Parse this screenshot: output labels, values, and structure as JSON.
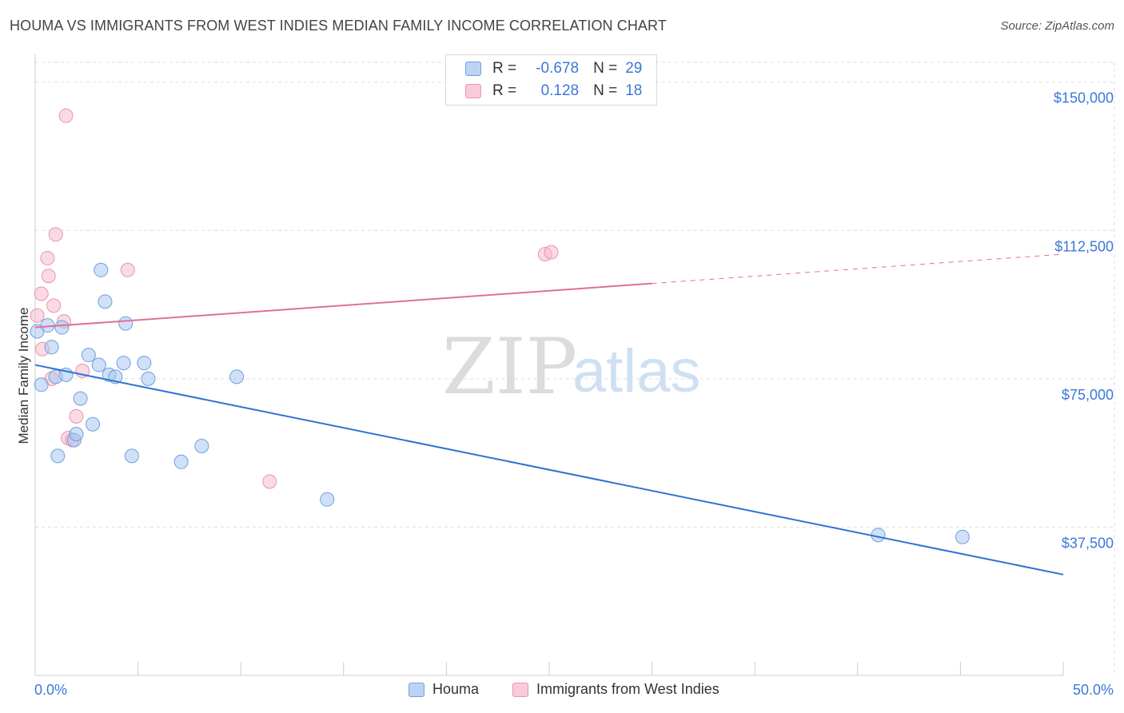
{
  "title": "HOUMA VS IMMIGRANTS FROM WEST INDIES MEDIAN FAMILY INCOME CORRELATION CHART",
  "source": "Source: ZipAtlas.com",
  "watermark": {
    "zip": "ZIP",
    "atlas": "atlas"
  },
  "legend": {
    "rows": [
      {
        "r_label": "R =",
        "r_value": "-0.678",
        "n_label": "N =",
        "n_value": "29"
      },
      {
        "r_label": "R =",
        "r_value": "0.128",
        "n_label": "N =",
        "n_value": "18"
      }
    ]
  },
  "bottom_legend": [
    "Houma",
    "Immigrants from West Indies"
  ],
  "colors": {
    "houma_fill": "#a9c7f0",
    "houma_stroke": "#6f9fe0",
    "houma_line": "#2f72d0",
    "wi_fill": "#f6bccd",
    "wi_stroke": "#ec93ae",
    "wi_line": "#e07096",
    "grid": "#dddddd",
    "axis_label": "#3b78d8"
  },
  "chart_data": {
    "type": "scatter",
    "title": "HOUMA VS IMMIGRANTS FROM WEST INDIES MEDIAN FAMILY INCOME CORRELATION CHART",
    "xlabel": "",
    "ylabel": "Median Family Income",
    "xlim": [
      0,
      50
    ],
    "ylim": [
      0,
      155000
    ],
    "x_tick_labels": [
      "0.0%",
      "50.0%"
    ],
    "y_ticks": [
      37500,
      75000,
      112500,
      150000
    ],
    "y_tick_labels": [
      "$37,500",
      "$75,000",
      "$112,500",
      "$150,000"
    ],
    "series": [
      {
        "name": "Houma",
        "r": -0.678,
        "n": 29,
        "trend": {
          "x": [
            0,
            50
          ],
          "y": [
            78500,
            25500
          ],
          "dashed_from": null
        },
        "points": [
          {
            "x": 0.1,
            "y": 87000
          },
          {
            "x": 0.3,
            "y": 73500
          },
          {
            "x": 0.6,
            "y": 88500
          },
          {
            "x": 0.8,
            "y": 83000
          },
          {
            "x": 1.0,
            "y": 75500
          },
          {
            "x": 1.1,
            "y": 55500
          },
          {
            "x": 1.3,
            "y": 88000
          },
          {
            "x": 1.5,
            "y": 76000
          },
          {
            "x": 1.9,
            "y": 59500
          },
          {
            "x": 2.0,
            "y": 61000
          },
          {
            "x": 2.2,
            "y": 70000
          },
          {
            "x": 2.6,
            "y": 81000
          },
          {
            "x": 2.8,
            "y": 63500
          },
          {
            "x": 3.1,
            "y": 78500
          },
          {
            "x": 3.2,
            "y": 102500
          },
          {
            "x": 3.4,
            "y": 94500
          },
          {
            "x": 3.6,
            "y": 76000
          },
          {
            "x": 3.9,
            "y": 75500
          },
          {
            "x": 4.3,
            "y": 79000
          },
          {
            "x": 4.4,
            "y": 89000
          },
          {
            "x": 4.7,
            "y": 55500
          },
          {
            "x": 5.3,
            "y": 79000
          },
          {
            "x": 5.5,
            "y": 75000
          },
          {
            "x": 7.1,
            "y": 54000
          },
          {
            "x": 8.1,
            "y": 58000
          },
          {
            "x": 9.8,
            "y": 75500
          },
          {
            "x": 14.2,
            "y": 44500
          },
          {
            "x": 41.0,
            "y": 35500
          },
          {
            "x": 45.1,
            "y": 35000
          }
        ]
      },
      {
        "name": "Immigrants from West Indies",
        "r": 0.128,
        "n": 18,
        "trend": {
          "x": [
            0,
            50
          ],
          "y": [
            88000,
            106500
          ],
          "dashed_from": 30
        },
        "points": [
          {
            "x": 0.1,
            "y": 91000
          },
          {
            "x": 0.3,
            "y": 96500
          },
          {
            "x": 0.35,
            "y": 82500
          },
          {
            "x": 0.6,
            "y": 105500
          },
          {
            "x": 0.65,
            "y": 101000
          },
          {
            "x": 0.8,
            "y": 75000
          },
          {
            "x": 0.9,
            "y": 93500
          },
          {
            "x": 1.0,
            "y": 111500
          },
          {
            "x": 1.4,
            "y": 89500
          },
          {
            "x": 1.5,
            "y": 141500
          },
          {
            "x": 1.6,
            "y": 60000
          },
          {
            "x": 1.8,
            "y": 59500
          },
          {
            "x": 2.0,
            "y": 65500
          },
          {
            "x": 2.3,
            "y": 77000
          },
          {
            "x": 4.5,
            "y": 102500
          },
          {
            "x": 11.4,
            "y": 49000
          },
          {
            "x": 24.8,
            "y": 106500
          },
          {
            "x": 25.1,
            "y": 107000
          }
        ]
      }
    ]
  }
}
